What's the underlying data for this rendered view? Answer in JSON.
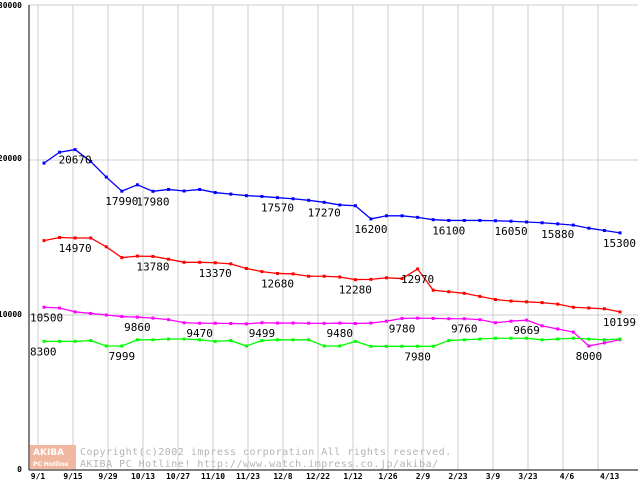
{
  "chart_data": {
    "type": "line",
    "title": "",
    "xlabel": "",
    "ylabel": "",
    "ylim": [
      0,
      30000
    ],
    "yticks": [
      0,
      10000,
      20000,
      30000
    ],
    "grid": true,
    "x_tick_labels": [
      "9/1",
      "9/15",
      "9/29",
      "10/13",
      "10/27",
      "11/10",
      "11/23",
      "12/8",
      "12/22",
      "1/12",
      "1/26",
      "2/9",
      "2/23",
      "3/9",
      "3/23",
      "4/6",
      "4/13"
    ],
    "series": [
      {
        "color": "#0000ff",
        "values": [
          19800,
          20500,
          20670,
          19900,
          18900,
          17990,
          18400,
          17980,
          18100,
          18000,
          18100,
          17900,
          17800,
          17700,
          17650,
          17570,
          17500,
          17400,
          17270,
          17100,
          17050,
          16200,
          16400,
          16400,
          16300,
          16150,
          16100,
          16100,
          16100,
          16080,
          16050,
          16000,
          15950,
          15880,
          15800,
          15600,
          15450,
          15300
        ]
      },
      {
        "color": "#ff0000",
        "values": [
          14800,
          15000,
          14970,
          14970,
          14400,
          13700,
          13800,
          13780,
          13600,
          13400,
          13400,
          13370,
          13300,
          13000,
          12800,
          12680,
          12650,
          12500,
          12500,
          12450,
          12280,
          12300,
          12400,
          12350,
          12970,
          11600,
          11500,
          11400,
          11200,
          11000,
          10900,
          10850,
          10800,
          10700,
          10500,
          10450,
          10400,
          10199
        ]
      },
      {
        "color": "#ff00ff",
        "values": [
          10500,
          10450,
          10200,
          10100,
          10000,
          9900,
          9860,
          9800,
          9700,
          9500,
          9470,
          9470,
          9450,
          9430,
          9499,
          9480,
          9480,
          9470,
          9460,
          9480,
          9450,
          9480,
          9600,
          9780,
          9800,
          9780,
          9760,
          9760,
          9700,
          9500,
          9600,
          9669,
          9300,
          9100,
          8900,
          8000,
          8200,
          8400
        ]
      },
      {
        "color": "#00ff00",
        "values": [
          8300,
          8300,
          8300,
          8350,
          8000,
          7999,
          8400,
          8400,
          8450,
          8450,
          8400,
          8300,
          8350,
          8000,
          8350,
          8400,
          8400,
          8400,
          7999,
          8000,
          8300,
          7980,
          7980,
          7980,
          7980,
          7980,
          8350,
          8400,
          8450,
          8500,
          8500,
          8500,
          8400,
          8450,
          8500,
          8450,
          8400,
          8450
        ]
      }
    ],
    "data_labels": [
      {
        "text": "20670",
        "series": 0,
        "index": 2,
        "pos": "below"
      },
      {
        "text": "17990",
        "series": 0,
        "index": 5,
        "pos": "below"
      },
      {
        "text": "17980",
        "series": 0,
        "index": 7,
        "pos": "below"
      },
      {
        "text": "17570",
        "series": 0,
        "index": 15,
        "pos": "below"
      },
      {
        "text": "17270",
        "series": 0,
        "index": 18,
        "pos": "below"
      },
      {
        "text": "16200",
        "series": 0,
        "index": 21,
        "pos": "below"
      },
      {
        "text": "16100",
        "series": 0,
        "index": 26,
        "pos": "below"
      },
      {
        "text": "16050",
        "series": 0,
        "index": 30,
        "pos": "below"
      },
      {
        "text": "15880",
        "series": 0,
        "index": 33,
        "pos": "below"
      },
      {
        "text": "15300",
        "series": 0,
        "index": 37,
        "pos": "below"
      },
      {
        "text": "14970",
        "series": 1,
        "index": 2,
        "pos": "below"
      },
      {
        "text": "13780",
        "series": 1,
        "index": 7,
        "pos": "below"
      },
      {
        "text": "13370",
        "series": 1,
        "index": 11,
        "pos": "below"
      },
      {
        "text": "12680",
        "series": 1,
        "index": 15,
        "pos": "below"
      },
      {
        "text": "12280",
        "series": 1,
        "index": 20,
        "pos": "below"
      },
      {
        "text": "12970",
        "series": 1,
        "index": 24,
        "pos": "below"
      },
      {
        "text": "10199",
        "series": 1,
        "index": 37,
        "pos": "below"
      },
      {
        "text": "10500",
        "series": 2,
        "index": 0,
        "pos": "below"
      },
      {
        "text": "9860",
        "series": 2,
        "index": 6,
        "pos": "below"
      },
      {
        "text": "9470",
        "series": 2,
        "index": 10,
        "pos": "below"
      },
      {
        "text": "9499",
        "series": 2,
        "index": 14,
        "pos": "below"
      },
      {
        "text": "9480",
        "series": 2,
        "index": 19,
        "pos": "below"
      },
      {
        "text": "9780",
        "series": 2,
        "index": 23,
        "pos": "below"
      },
      {
        "text": "9760",
        "series": 2,
        "index": 27,
        "pos": "below"
      },
      {
        "text": "9669",
        "series": 2,
        "index": 31,
        "pos": "below"
      },
      {
        "text": "8000",
        "series": 2,
        "index": 35,
        "pos": "below"
      },
      {
        "text": "8300",
        "series": 3,
        "index": 0,
        "pos": "below"
      },
      {
        "text": "7999",
        "series": 3,
        "index": 5,
        "pos": "below"
      },
      {
        "text": "7980",
        "series": 3,
        "index": 24,
        "pos": "below"
      }
    ]
  },
  "ytick_labels": [
    "0",
    "10000",
    "20000",
    "30000"
  ],
  "copyright": {
    "line1": "Copyright(c)2002 impress corporation All rights reserved.",
    "line2": "AKIBA PC Hotline!  http://www.watch.impress.co.jp/akiba/"
  },
  "logo": {
    "top": "AKIBA",
    "bottom": "PC Hotline"
  },
  "colors": {
    "grid": "#cccccc",
    "axis": "#000000",
    "copyright": "#b4b4b4",
    "logo": "#f0b8a0"
  }
}
